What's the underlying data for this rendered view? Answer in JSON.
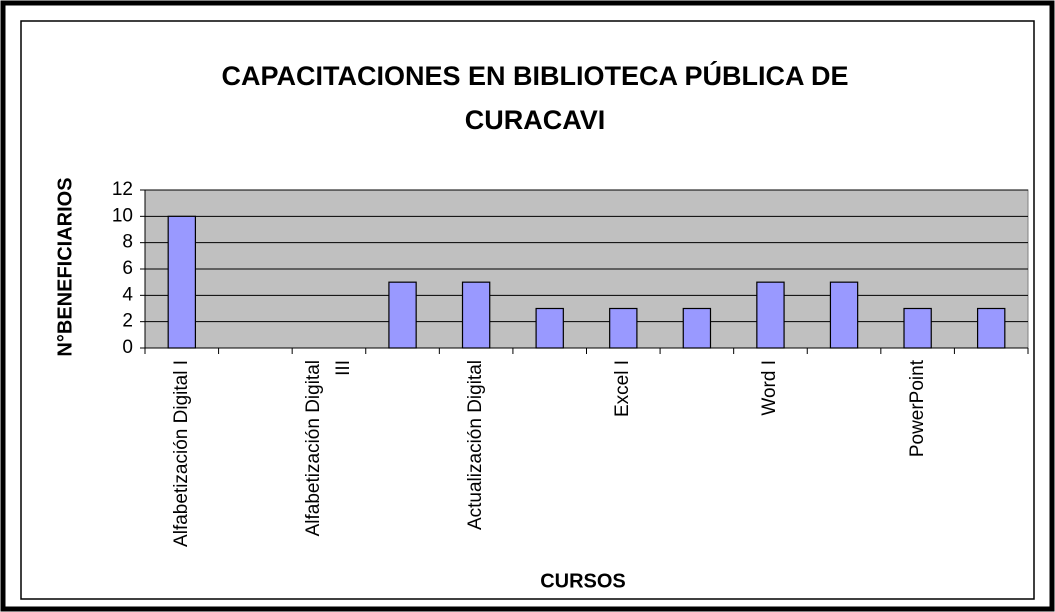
{
  "chart_data": {
    "type": "bar",
    "title": [
      "CAPACITACIONES EN BIBLIOTECA PÚBLICA DE",
      "CURACAVI"
    ],
    "x_label": "CURSOS",
    "y_label": "N°BENEFICIARIOS",
    "categories": [
      "Alfabetización Digital I",
      null,
      "Alfabetización Digital III",
      null,
      "Actualización Digital",
      null,
      "Excel I",
      null,
      "Word I",
      null,
      "PowerPoint",
      null
    ],
    "values": [
      10,
      0,
      0,
      5,
      5,
      3,
      3,
      3,
      5,
      5,
      3,
      3
    ],
    "color": "#9999ff",
    "ylim": [
      0,
      12
    ],
    "yticks": [
      0,
      2,
      4,
      6,
      8,
      10,
      12
    ],
    "grid": true
  }
}
